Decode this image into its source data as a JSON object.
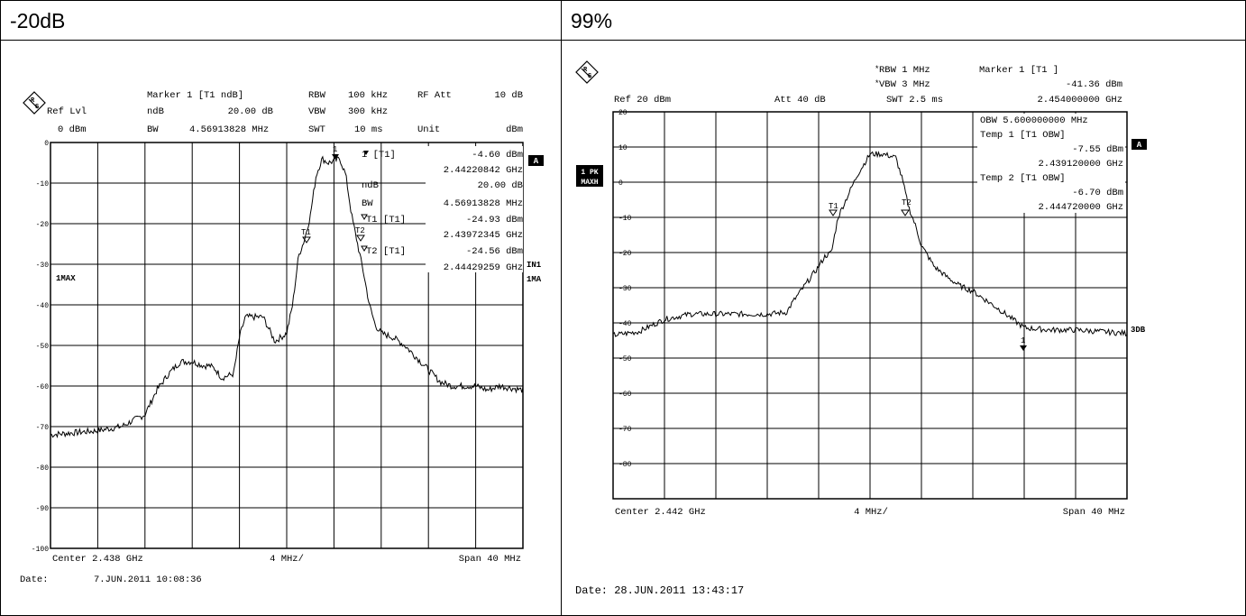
{
  "panels": {
    "left_title": "-20dB",
    "right_title": "99%"
  },
  "left": {
    "ref_lvl_label": "Ref Lvl",
    "ref_lvl_value": "0 dBm",
    "marker_hdr": "Marker 1 [T1 ndB]",
    "ndb_label": "ndB",
    "ndb_value": "20.00 dB",
    "bw_label": "BW",
    "bw_value": "4.56913828 MHz",
    "rbw_label": "RBW",
    "rbw_value": "100 kHz",
    "vbw_label": "VBW",
    "vbw_value": "300 kHz",
    "swt_label": "SWT",
    "swt_value": "10 ms",
    "rfatt_label": "RF Att",
    "rfatt_value": "10 dB",
    "unit_label": "Unit",
    "unit_value": "dBm",
    "marker_block": [
      {
        "label": "1 [T1]",
        "value": "-4.60 dBm"
      },
      {
        "label": "",
        "value": "2.44220842 GHz"
      },
      {
        "label": "ndB",
        "value": "20.00 dB"
      },
      {
        "label": "BW",
        "value": "4.56913828 MHz"
      },
      {
        "label": "T1 [T1]",
        "value": "-24.93 dBm"
      },
      {
        "label": "",
        "value": "2.43972345 GHz"
      },
      {
        "label": "T2 [T1]",
        "value": "-24.56 dBm"
      },
      {
        "label": "",
        "value": "2.44429259 GHz"
      }
    ],
    "side_a": "A",
    "side_in1": "IN1",
    "side_1ma": "1MA",
    "trace_label": "1MAX",
    "center": "Center 2.438 GHz",
    "per_div": "4 MHz/",
    "span": "Span 40 MHz",
    "date_label": "Date:",
    "date_value": "7.JUN.2011  10:08:36",
    "marker_tags": {
      "m1": "1",
      "t1": "T1",
      "t2": "T2"
    }
  },
  "right": {
    "rbw": "RBW 1 MHz",
    "vbw": "VBW 3 MHz",
    "swt": "SWT 2.5 ms",
    "ref": "Ref  20 dBm",
    "att": "Att  40 dB",
    "marker_hdr": "Marker 1 [T1 ]",
    "marker_level": "-41.36 dBm",
    "marker_freq": "2.454000000 GHz",
    "info_block": [
      "OBW  5.600000000 MHz",
      "Temp 1 [T1 OBW]",
      "-7.55 dBm",
      "2.439120000 GHz",
      "Temp 2 [T1 OBW]",
      "-6.70 dBm",
      "2.444720000 GHz"
    ],
    "side_a": "A",
    "side_pk": "1 PK",
    "side_maxh": "MAXH",
    "side_3db": "3DB",
    "center": "Center 2.442 GHz",
    "per_div": "4 MHz/",
    "span": "Span 40 MHz",
    "date": "Date: 28.JUN.2011  13:43:17",
    "marker_tags": {
      "m1": "1",
      "t1": "T1",
      "t2": "T2"
    }
  },
  "chart_data": [
    {
      "type": "line",
      "title": "-20dB",
      "xlabel": "",
      "ylabel": "",
      "xlim": [
        2.418,
        2.458
      ],
      "ylim": [
        -100,
        0
      ],
      "yticks": [
        0,
        -10,
        -20,
        -30,
        -40,
        -50,
        -60,
        -70,
        -80,
        -90,
        -100
      ],
      "grid": true,
      "series": [
        {
          "x": [
            2.418,
            2.42,
            2.422,
            2.424,
            2.426,
            2.4265,
            2.427,
            2.428,
            2.429,
            2.43,
            2.431,
            2.4315,
            2.432,
            2.4325,
            2.4335,
            2.434,
            2.4345,
            2.435,
            2.436,
            2.437,
            2.438,
            2.4385,
            2.439,
            2.4395,
            2.44,
            2.4405,
            2.441,
            2.4415,
            2.442,
            2.4425,
            2.443,
            2.4435,
            2.444,
            2.4445,
            2.445,
            2.4455,
            2.446,
            2.447,
            2.448,
            2.449,
            2.45,
            2.451,
            2.452,
            2.453,
            2.454,
            2.455,
            2.456,
            2.458
          ],
          "y": [
            -72,
            -71.5,
            -71,
            -70,
            -67,
            -64,
            -61,
            -57,
            -54,
            -54,
            -55,
            -55,
            -56,
            -58,
            -57,
            -48,
            -43,
            -43,
            -43,
            -49,
            -47,
            -40,
            -28,
            -24,
            -18,
            -8,
            -4,
            -5,
            -4.6,
            -4,
            -8,
            -18,
            -25,
            -32,
            -40,
            -45,
            -47,
            -48,
            -50,
            -53,
            -56,
            -59,
            -60,
            -60,
            -60,
            -61,
            -60,
            -61
          ]
        }
      ]
    },
    {
      "type": "line",
      "title": "99%",
      "xlabel": "",
      "ylabel": "",
      "xlim": [
        2.422,
        2.462
      ],
      "ylim": [
        -90,
        20
      ],
      "yticks": [
        20,
        10,
        0,
        -10,
        -20,
        -30,
        -40,
        -50,
        -60,
        -70,
        -80
      ],
      "grid": true,
      "series": [
        {
          "x": [
            2.422,
            2.424,
            2.426,
            2.428,
            2.43,
            2.432,
            2.434,
            2.4355,
            2.436,
            2.437,
            2.438,
            2.4385,
            2.439,
            2.4395,
            2.44,
            2.441,
            2.442,
            2.443,
            2.444,
            2.4445,
            2.445,
            2.4455,
            2.446,
            2.447,
            2.448,
            2.449,
            2.45,
            2.452,
            2.454,
            2.456,
            2.458,
            2.46,
            2.462
          ],
          "y": [
            -43.5,
            -42.5,
            -39,
            -37.5,
            -37.5,
            -37.5,
            -37.5,
            -37,
            -34,
            -29,
            -24,
            -21,
            -20,
            -10,
            -6,
            2,
            8,
            8,
            7,
            1,
            -7,
            -12,
            -18,
            -24,
            -27,
            -29.5,
            -31,
            -36,
            -41.4,
            -42,
            -42,
            -42.5,
            -43
          ]
        }
      ]
    }
  ]
}
